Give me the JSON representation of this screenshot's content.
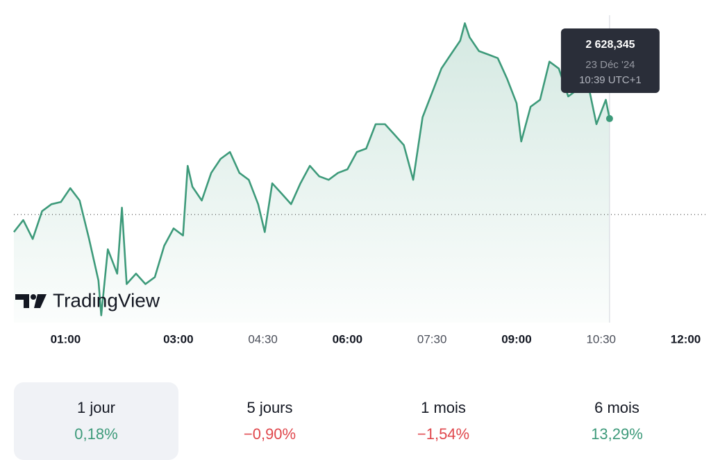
{
  "chart_data": {
    "type": "line",
    "x": [
      "00:05",
      "00:15",
      "00:25",
      "00:35",
      "00:45",
      "00:55",
      "01:05",
      "01:15",
      "01:25",
      "01:35",
      "01:38",
      "01:45",
      "01:55",
      "02:00",
      "02:05",
      "02:15",
      "02:25",
      "02:35",
      "02:45",
      "02:55",
      "03:05",
      "03:10",
      "03:15",
      "03:25",
      "03:35",
      "03:45",
      "03:55",
      "04:05",
      "04:15",
      "04:25",
      "04:32",
      "04:40",
      "04:50",
      "05:00",
      "05:10",
      "05:20",
      "05:30",
      "05:40",
      "05:50",
      "06:00",
      "06:10",
      "06:20",
      "06:30",
      "06:40",
      "06:50",
      "07:00",
      "07:10",
      "07:20",
      "07:30",
      "07:40",
      "07:50",
      "08:00",
      "08:05",
      "08:10",
      "08:20",
      "08:30",
      "08:40",
      "08:50",
      "09:00",
      "09:05",
      "09:15",
      "09:25",
      "09:35",
      "09:45",
      "09:55",
      "10:05",
      "10:15",
      "10:25",
      "10:35",
      "10:39"
    ],
    "values": [
      2622.76,
      2623.35,
      2622.42,
      2623.79,
      2624.13,
      2624.24,
      2624.92,
      2624.31,
      2622.42,
      2620.37,
      2618.66,
      2621.91,
      2620.71,
      2623.96,
      2620.2,
      2620.71,
      2620.2,
      2620.54,
      2622.08,
      2622.94,
      2622.59,
      2626.02,
      2624.99,
      2624.31,
      2625.67,
      2626.36,
      2626.7,
      2625.67,
      2625.33,
      2624.13,
      2622.76,
      2625.16,
      2624.65,
      2624.13,
      2625.16,
      2626.02,
      2625.5,
      2625.33,
      2625.67,
      2625.85,
      2626.7,
      2626.87,
      2628.07,
      2628.07,
      2627.56,
      2627.04,
      2625.33,
      2628.41,
      2629.61,
      2630.81,
      2631.5,
      2632.18,
      2633.04,
      2632.35,
      2631.67,
      2631.5,
      2631.32,
      2630.3,
      2629.1,
      2627.22,
      2628.93,
      2629.27,
      2631.15,
      2630.81,
      2629.44,
      2629.78,
      2630.3,
      2628.07,
      2629.27,
      2628.345
    ],
    "value_labels": [
      null,
      null,
      null,
      null,
      null,
      null,
      null,
      null,
      null,
      null,
      null,
      null,
      null,
      null,
      null,
      null,
      null,
      null,
      null,
      null,
      null,
      null,
      null,
      null,
      null,
      null,
      null,
      null,
      null,
      null,
      null,
      null,
      null,
      null,
      null,
      null,
      null,
      null,
      null,
      null,
      null,
      null,
      null,
      null,
      null,
      null,
      null,
      null,
      null,
      null,
      null,
      null,
      null,
      null,
      null,
      null,
      null,
      null,
      null,
      null,
      null,
      null,
      null,
      null,
      null,
      null,
      null,
      null,
      null,
      "2 628,345"
    ],
    "color": "#3d9a7a",
    "baseline": 2623.62,
    "xlim": [
      "00:05",
      "12:24"
    ],
    "ylim": [
      2618.3,
      2633.5
    ],
    "xticks": [
      "01:00",
      "03:00",
      "04:30",
      "06:00",
      "07:30",
      "09:00",
      "10:30",
      "12:00"
    ],
    "xtick_bold": [
      true,
      true,
      false,
      true,
      false,
      true,
      false,
      true
    ],
    "tooltip_date": "23 Déc '24",
    "tooltip_time": "10:39 UTC+1",
    "watermark": "TradingView"
  },
  "periods": [
    {
      "label": "1 jour",
      "change": 0.18,
      "change_label": "0,18%"
    },
    {
      "label": "5 jours",
      "change": -0.9,
      "change_label": "−0,90%"
    },
    {
      "label": "1 mois",
      "change": -1.54,
      "change_label": "−1,54%"
    },
    {
      "label": "6 mois",
      "change": 13.29,
      "change_label": "13,29%"
    }
  ],
  "selected_period": 0
}
